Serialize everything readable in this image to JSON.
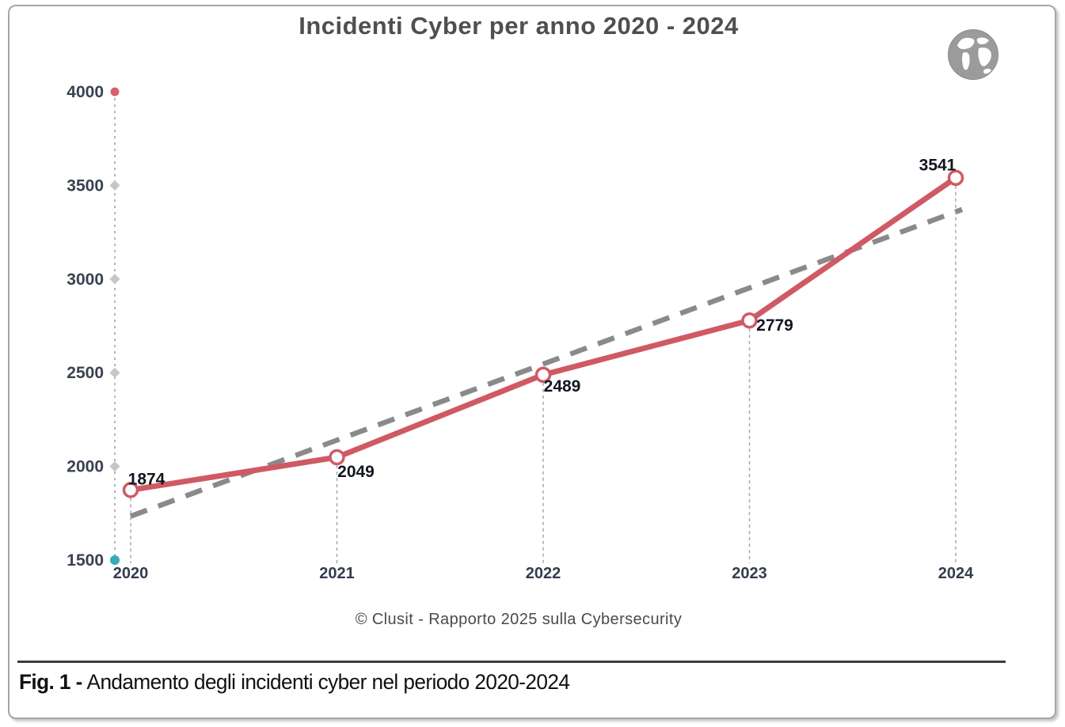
{
  "header": {
    "title": "Incidenti Cyber per anno 2020 - 2024"
  },
  "icons": {
    "globe": "earth-globe-icon"
  },
  "chart_data": {
    "type": "line",
    "title": "Incidenti Cyber per anno 2020 - 2024",
    "x": [
      2020,
      2021,
      2022,
      2023,
      2024
    ],
    "series": [
      {
        "name": "Incidenti cyber",
        "values": [
          1874,
          2049,
          2489,
          2779,
          3541
        ],
        "color": "#cf5a64",
        "marker": "open-circle"
      }
    ],
    "trendline": {
      "type": "linear",
      "x": [
        2020,
        2024
      ],
      "values": [
        1734,
        3359
      ],
      "color": "#8a8a8a",
      "style": "dashed"
    },
    "yticks": [
      1500,
      2000,
      2500,
      3000,
      3500,
      4000
    ],
    "ylim": [
      1500,
      4000
    ],
    "xlabel": "",
    "ylabel": "",
    "grid": false,
    "legend": false,
    "axis_marker_colors": {
      "top": "#d8606b",
      "middle": "#c6c6c6",
      "bottom": "#38a9ba"
    }
  },
  "footer": {
    "source": "© Clusit - Rapporto 2025 sulla Cybersecurity",
    "figure_label": "Fig. 1 -",
    "figure_text": "Andamento degli incidenti cyber nel periodo 2020-2024"
  }
}
